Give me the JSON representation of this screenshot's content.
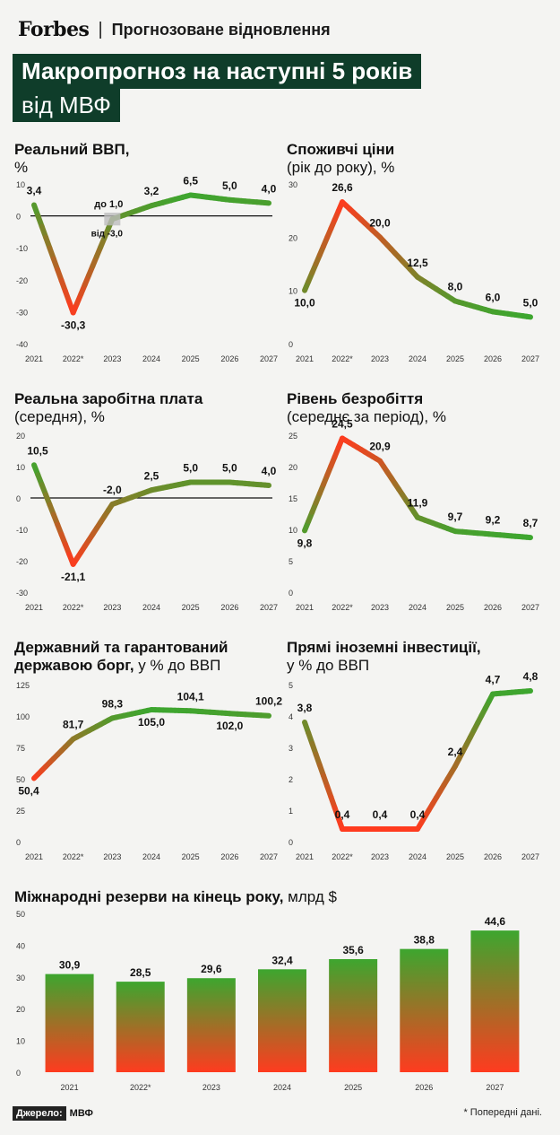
{
  "header": {
    "logo": "Forbes",
    "separator": "|",
    "subtitle": "Прогнозоване відновлення"
  },
  "title": {
    "line1": "Макропрогноз на наступні 5 років",
    "line2": "від МВФ"
  },
  "colors": {
    "green": "#3da62f",
    "red": "#ff3b1f",
    "dark_green": "#0f3d2a"
  },
  "chart_data": [
    {
      "type": "line",
      "title_bold": "Реальний ВВП,",
      "title_rest": "%",
      "x": [
        "2021",
        "2022*",
        "2023",
        "2024",
        "2025",
        "2026",
        "2027"
      ],
      "values": [
        3.4,
        -30.3,
        -1.0,
        3.2,
        6.5,
        5.0,
        4.0
      ],
      "labels": [
        "3,4",
        "-30,3",
        "",
        "3,2",
        "6,5",
        "5,0",
        "4,0"
      ],
      "range_2023": {
        "from": -3.0,
        "to": 1.0,
        "label_to": "до 1,0",
        "label_from": "від -3,0"
      },
      "yticks": [
        "10",
        "0",
        "-10",
        "-20",
        "-30",
        "-40"
      ],
      "ylim": [
        -40,
        10
      ],
      "zero_line": true
    },
    {
      "type": "line",
      "title_bold": "Споживчі ціни",
      "title_rest": "(рік до року), %",
      "x": [
        "2021",
        "2022*",
        "2023",
        "2024",
        "2025",
        "2026",
        "2027"
      ],
      "values": [
        10.0,
        26.6,
        20.0,
        12.5,
        8.0,
        6.0,
        5.0
      ],
      "labels": [
        "10,0",
        "26,6",
        "20,0",
        "12,5",
        "8,0",
        "6,0",
        "5,0"
      ],
      "yticks": [
        "30",
        "20",
        "10",
        "0"
      ],
      "ylim": [
        0,
        30
      ]
    },
    {
      "type": "line",
      "title_bold": "Реальна заробітна плата",
      "title_rest": "(середня), %",
      "x": [
        "2021",
        "2022*",
        "2023",
        "2024",
        "2025",
        "2026",
        "2027"
      ],
      "values": [
        10.5,
        -21.1,
        -2.0,
        2.5,
        5.0,
        5.0,
        4.0
      ],
      "labels": [
        "10,5",
        "-21,1",
        "-2,0",
        "2,5",
        "5,0",
        "5,0",
        "4,0"
      ],
      "yticks": [
        "20",
        "10",
        "0",
        "-10",
        "-20",
        "-30"
      ],
      "ylim": [
        -30,
        20
      ],
      "zero_line": true
    },
    {
      "type": "line",
      "title_bold": "Рівень безробіття",
      "title_rest": "(середнє за період), %",
      "x": [
        "2021",
        "2022*",
        "2023",
        "2024",
        "2025",
        "2026",
        "2027"
      ],
      "values": [
        9.8,
        24.5,
        20.9,
        11.9,
        9.7,
        9.2,
        8.7
      ],
      "labels": [
        "9,8",
        "24,5",
        "20,9",
        "11,9",
        "9,7",
        "9,2",
        "8,7"
      ],
      "yticks": [
        "25",
        "20",
        "15",
        "10",
        "5",
        "0"
      ],
      "ylim": [
        0,
        25
      ]
    },
    {
      "type": "line",
      "title_bold": "Державний та гарантований державою борг,",
      "title_line1": "Державний та гарантований",
      "title_line2_bold": "державою борг,",
      "title_rest": "у % до ВВП",
      "x": [
        "2021",
        "2022*",
        "2023",
        "2024",
        "2025",
        "2026",
        "2027"
      ],
      "values": [
        50.4,
        81.7,
        98.3,
        105.0,
        104.1,
        102.0,
        100.2
      ],
      "labels": [
        "50,4",
        "81,7",
        "98,3",
        "105,0",
        "104,1",
        "102,0",
        "100,2"
      ],
      "yticks": [
        "125",
        "100",
        "75",
        "50",
        "25",
        "0"
      ],
      "ylim": [
        0,
        125
      ]
    },
    {
      "type": "line",
      "title_bold": "Прямі іноземні інвестиції,",
      "title_rest": "у % до ВВП",
      "x": [
        "2021",
        "2022*",
        "2023",
        "2024",
        "2025",
        "2026",
        "2027"
      ],
      "values": [
        3.8,
        0.4,
        0.4,
        0.4,
        2.4,
        4.7,
        4.8
      ],
      "labels": [
        "3,8",
        "0,4",
        "0,4",
        "0,4",
        "2,4",
        "4,7",
        "4,8"
      ],
      "yticks": [
        "5",
        "4",
        "3",
        "2",
        "1",
        "0"
      ],
      "ylim": [
        0,
        5
      ]
    },
    {
      "type": "bar",
      "title_bold": "Міжнародні резерви на кінець року,",
      "title_rest": "млрд $",
      "categories": [
        "2021",
        "2022*",
        "2023",
        "2024",
        "2025",
        "2026",
        "2027"
      ],
      "values": [
        30.9,
        28.5,
        29.6,
        32.4,
        35.6,
        38.8,
        44.6
      ],
      "labels": [
        "30,9",
        "28,5",
        "29,6",
        "32,4",
        "35,6",
        "38,8",
        "44,6"
      ],
      "yticks": [
        "50",
        "40",
        "30",
        "20",
        "10",
        "0"
      ],
      "ylim": [
        0,
        50
      ]
    }
  ],
  "footer": {
    "source_label": "Джерело:",
    "source_value": "МВФ",
    "note": "* Попередні дані."
  }
}
